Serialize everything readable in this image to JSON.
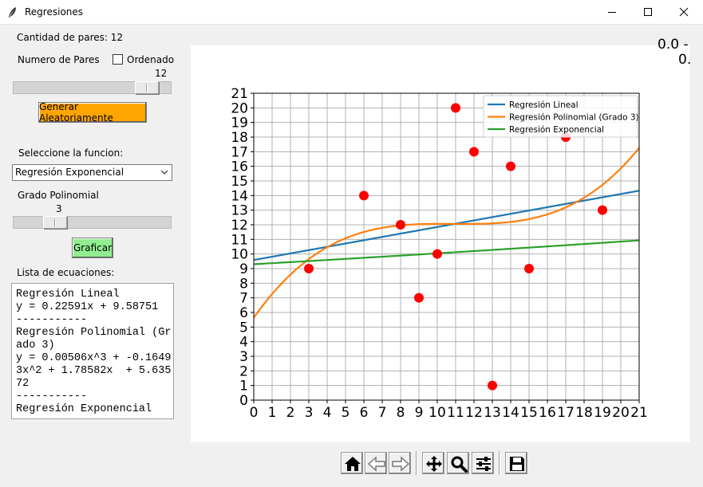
{
  "window": {
    "title": "Regresiones"
  },
  "controls": {
    "pair_count_label": "Cantidad de pares: 12",
    "num_pairs_label": "Numero de Pares",
    "ordered_label": "Ordenado",
    "pairs_slider_value": "12",
    "pairs_slider_fraction": 0.91,
    "generate_button": "Generar Aleatoriamente",
    "generate_button_color": "#ffa500",
    "select_function_label": "Seleccione la funcion:",
    "function_selected": "Regresión Exponencial",
    "poly_degree_label": "Grado Polinomial",
    "poly_slider_value": "3",
    "poly_slider_fraction": 0.22,
    "plot_button": "Graficar",
    "plot_button_color": "#90ee90",
    "equations_label": "Lista de ecuaciones:",
    "equations_lines": [
      "Regresión Lineal",
      "y = 0.22591x + 9.58751",
      "-----------",
      "Regresión Polinomial (Gr",
      "ado 3)",
      "y = 0.00506x^3 + -0.1649",
      "3x^2 + 1.78582x  + 5.635",
      "72",
      "-----------",
      "Regresión Exponencial"
    ]
  },
  "overflow_text": {
    "line1": "0.0 -",
    "line2": "0."
  },
  "toolbar": [
    "home-icon",
    "back-icon",
    "forward-icon",
    "pan-icon",
    "zoom-icon",
    "configure-icon",
    "save-icon"
  ],
  "chart_data": {
    "type": "scatter",
    "xlim": [
      0,
      21
    ],
    "ylim": [
      0,
      21
    ],
    "x_ticks": [
      "0",
      "1",
      "2",
      "3",
      "4",
      "5",
      "6",
      "7",
      "8",
      "9",
      "10",
      "11",
      "12",
      "13",
      "14",
      "15",
      "16",
      "17",
      "18",
      "19",
      "20",
      "21"
    ],
    "y_ticks": [
      "0",
      "1",
      "2",
      "3",
      "4",
      "5",
      "6",
      "7",
      "8",
      "9",
      "10",
      "11",
      "12",
      "13",
      "14",
      "15",
      "16",
      "17",
      "18",
      "19",
      "20",
      "21"
    ],
    "grid": true,
    "legend_position": "top-right",
    "points": {
      "color": "#ff0000",
      "x": [
        3,
        6,
        8,
        9,
        10,
        11,
        12,
        13,
        14,
        15,
        17,
        19
      ],
      "y": [
        9,
        14,
        12,
        7,
        10,
        20,
        17,
        1,
        16,
        9,
        18,
        13
      ]
    },
    "series": [
      {
        "name": "Regresión Lineal",
        "color": "#1f77b4",
        "model": "linear",
        "coef": [
          9.58751,
          0.22591
        ]
      },
      {
        "name": "Regresión Polinomial (Grado 3)",
        "color": "#ff7f0e",
        "model": "poly",
        "coef": [
          5.63572,
          1.78582,
          -0.16493,
          0.00506
        ]
      },
      {
        "name": "Regresión Exponencial",
        "color": "#2ca02c",
        "model": "exp",
        "coef": [
          9.3,
          0.0077
        ]
      }
    ]
  }
}
